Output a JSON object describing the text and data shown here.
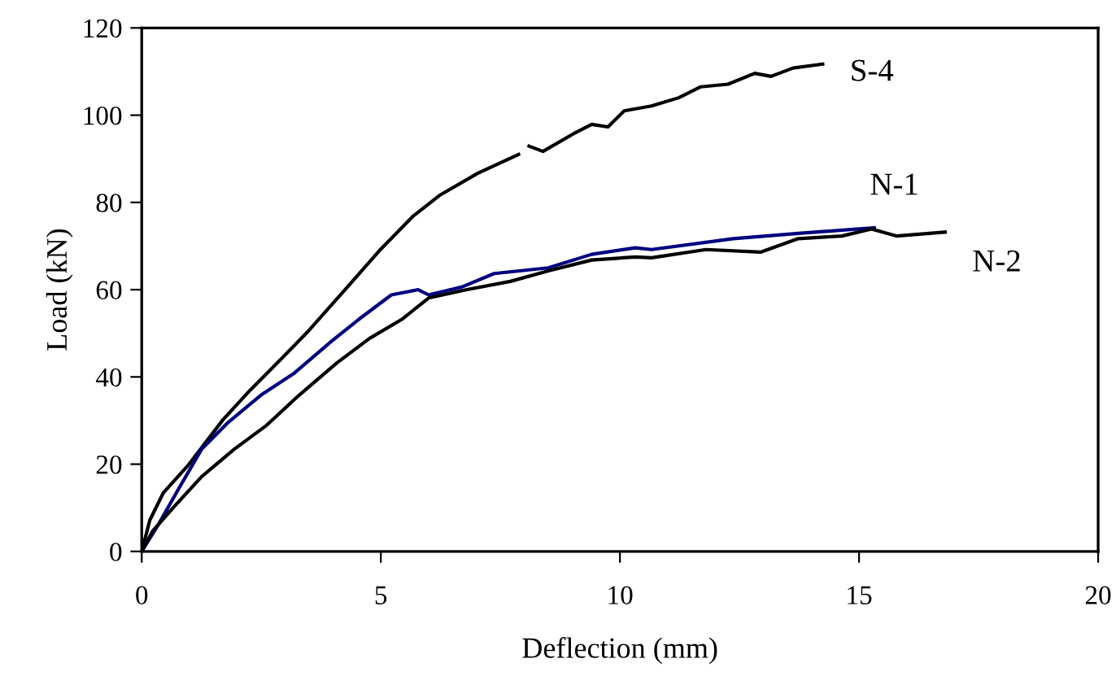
{
  "chart_data": {
    "type": "line",
    "xlabel": "Deflection (mm)",
    "ylabel": "Load (kN)",
    "xlim": [
      0,
      20
    ],
    "xticks": [
      0,
      5,
      10,
      15,
      20
    ],
    "ylim": [
      0,
      120
    ],
    "yticks": [
      0,
      20,
      40,
      60,
      80,
      100,
      120
    ],
    "grid": false,
    "legend": false,
    "marker": "none",
    "line_style": "solid",
    "series": [
      {
        "name": "S-4",
        "color": "#000000",
        "x": [
          0,
          0.17,
          0.45,
          0.96,
          1.7,
          2.27,
          2.95,
          3.5,
          4.3,
          5.0,
          5.67,
          6.24,
          7.03,
          7.88,
          7.98,
          8.1,
          8.39,
          9.07,
          9.41,
          9.75,
          10.09,
          10.66,
          11.23,
          11.69,
          12.26,
          12.82,
          13.16,
          13.62,
          14.24
        ],
        "values": [
          0,
          7.2,
          13.4,
          19.6,
          30.2,
          37,
          44.5,
          50.7,
          60.6,
          69.3,
          76.8,
          81.7,
          86.7,
          91,
          null,
          92.9,
          91.7,
          96,
          97.9,
          97.3,
          101,
          102.1,
          104,
          106.5,
          107.1,
          109.6,
          108.9,
          110.8,
          111.7
        ]
      },
      {
        "name": "N-1",
        "color": "#000080",
        "x": [
          0,
          0.34,
          0.79,
          1.25,
          1.81,
          2.49,
          3.17,
          3.97,
          4.54,
          5.22,
          5.78,
          6.0,
          6.69,
          7.37,
          8.5,
          9.41,
          10.32,
          10.66,
          12.37,
          13.73,
          15.32
        ],
        "values": [
          0,
          6,
          14.7,
          23.4,
          29.6,
          35.8,
          40.7,
          48.2,
          53.2,
          58.8,
          60,
          58.8,
          60.6,
          63.7,
          65,
          68.1,
          69.6,
          69.2,
          71.7,
          72.9,
          74.2
        ]
      },
      {
        "name": "N-2",
        "color": "#000000",
        "x": [
          0,
          0.23,
          0.68,
          1.25,
          1.93,
          2.61,
          3.29,
          4.08,
          4.76,
          5.44,
          6.0,
          6.8,
          7.71,
          8.5,
          9.41,
          10.32,
          10.66,
          11.8,
          12.94,
          13.73,
          14.64,
          15.26,
          15.78,
          16.8
        ],
        "values": [
          0,
          4.7,
          10.3,
          17.1,
          23.4,
          28.9,
          35.8,
          43.2,
          48.8,
          53.2,
          58.1,
          60,
          61.9,
          64.3,
          66.8,
          67.5,
          67.3,
          69.2,
          68.6,
          71.7,
          72.3,
          73.9,
          72.3,
          73.2
        ]
      }
    ]
  }
}
